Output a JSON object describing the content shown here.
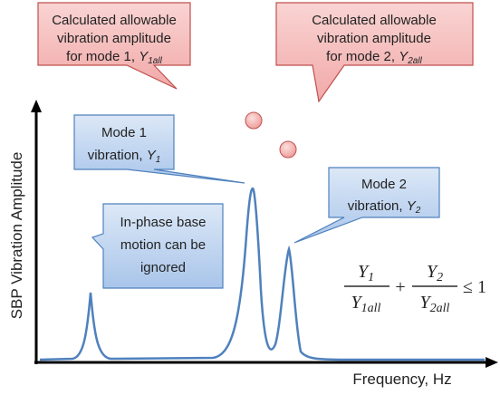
{
  "callouts": [
    {
      "lines": [
        "Calculated allowable",
        "vibration amplitude"
      ],
      "last_line": "for mode 1, ",
      "symbol": "Y",
      "subscript": "1all"
    },
    {
      "lines": [
        "Calculated allowable",
        "vibration amplitude"
      ],
      "last_line": "for mode 2, ",
      "symbol": "Y",
      "subscript": "2all"
    },
    {
      "lines": [
        "Mode 1"
      ],
      "last_line": "vibration, ",
      "symbol": "Y",
      "subscript": "1"
    },
    {
      "lines": [
        "Mode 2"
      ],
      "last_line": "vibration, ",
      "symbol": "Y",
      "subscript": "2"
    },
    {
      "lines": [
        "In-phase base",
        "motion can be",
        "ignored"
      ]
    }
  ],
  "axes": {
    "y_label": "SBP Vibration Amplitude",
    "x_label": "Frequency, Hz"
  },
  "formula": {
    "term1": {
      "num": "Y",
      "num_sub": "1",
      "den": "Y",
      "den_sub": "1all"
    },
    "plus": "+",
    "term2": {
      "num": "Y",
      "num_sub": "2",
      "den": "Y",
      "den_sub": "2all"
    },
    "relation": "≤ 1"
  }
}
